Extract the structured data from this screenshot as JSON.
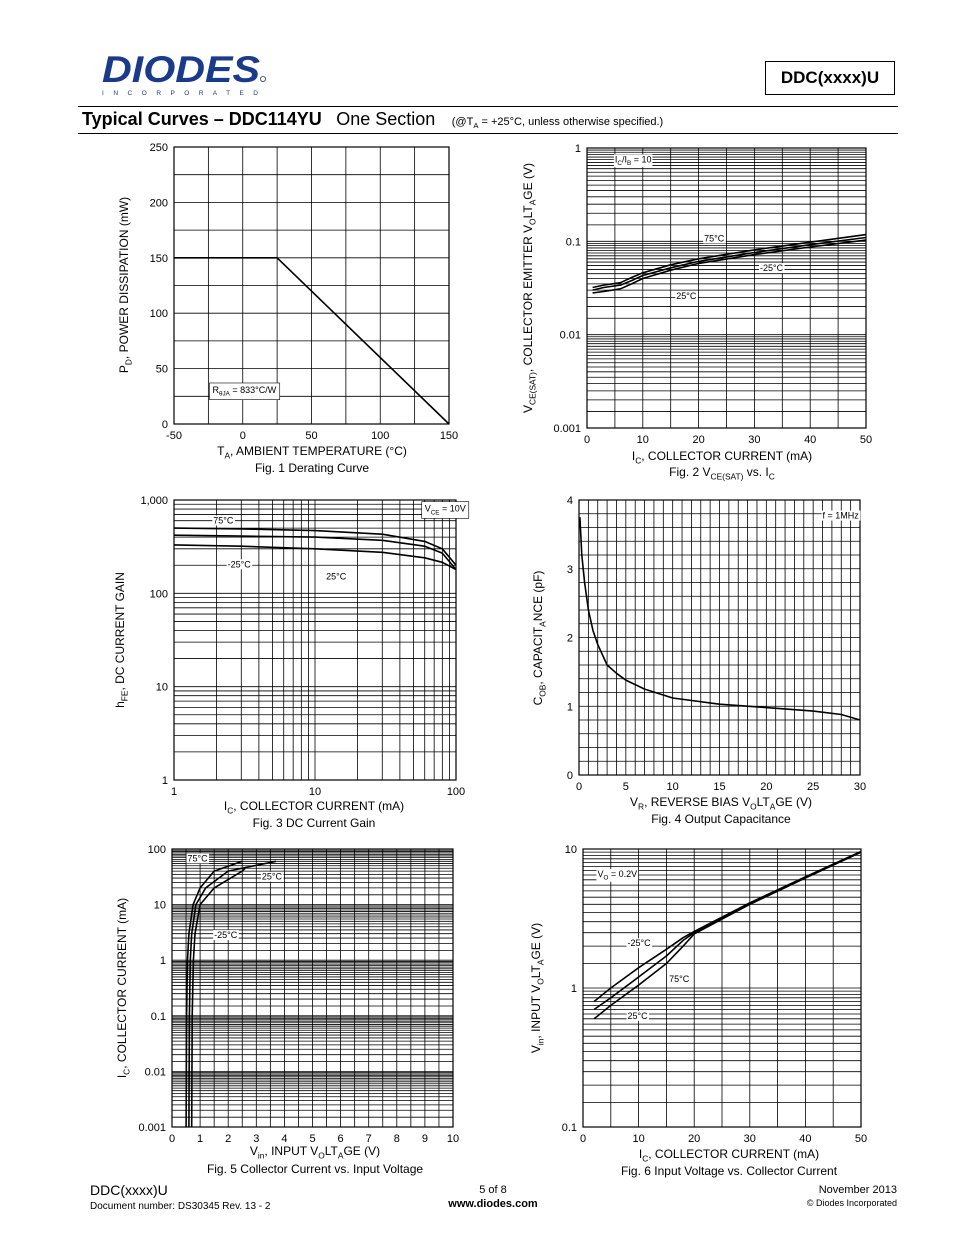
{
  "header": {
    "logo_text": "DIODES",
    "logo_sub": "I N C O R P O R A T E D",
    "part_box": "DDC(xxxx)U",
    "title_main": "Typical Curves – DDC114YU",
    "title_section": "One Section",
    "title_conditions": "(@TA = +25°C, unless otherwise specified.)"
  },
  "colors": {
    "ink": "#000000",
    "grid_curve": "#000000",
    "paper": "#ffffff"
  },
  "footer": {
    "part": "DDC(xxxx)U",
    "document": "Document number: DS30345 Rev. 13 - 2",
    "page": "5 of 8",
    "website": "www.diodes.com",
    "date": "November 2013",
    "copyright": "© Diodes Incorporated"
  },
  "chart_data": [
    {
      "id": "fig1",
      "type": "line",
      "xscale": "linear",
      "yscale": "linear",
      "caption": "Fig. 1  Derating Curve",
      "xlabel": "TA, AMBIENT TEMPERATURE (°C)",
      "ylabel": "PD, POWER DISSIPATION (mW)",
      "xlim": [
        -50,
        150
      ],
      "ylim": [
        0,
        250
      ],
      "x_tick_labels": [
        [
          "-50",
          -50
        ],
        [
          "0",
          0
        ],
        [
          "50",
          50
        ],
        [
          "100",
          100
        ],
        [
          "150",
          150
        ]
      ],
      "y_tick_labels": [
        [
          "0",
          0
        ],
        [
          "50",
          50
        ],
        [
          "100",
          100
        ],
        [
          "150",
          150
        ],
        [
          "200",
          200
        ],
        [
          "250",
          250
        ]
      ],
      "x_grid": [
        -50,
        -25,
        0,
        25,
        50,
        75,
        100,
        125,
        150
      ],
      "y_grid": [
        0,
        25,
        50,
        75,
        100,
        125,
        150,
        175,
        200,
        225,
        250
      ],
      "series": [
        {
          "x": [
            -50,
            25,
            150
          ],
          "y": [
            150,
            150,
            0
          ]
        }
      ],
      "annotations": [
        {
          "text": "RθJA = 833°C/W",
          "x": -22,
          "y": 28,
          "boxed": true
        }
      ]
    },
    {
      "id": "fig2",
      "type": "line",
      "xscale": "linear",
      "yscale": "log",
      "caption": "Fig. 2  VCE(SAT) vs. IC",
      "xlabel": "IC, COLLECTOR CURRENT (mA)",
      "ylabel": "VCE(SAT), COLLECTOR EMITTER VOLTAGE (V)",
      "xlim": [
        0,
        50
      ],
      "ylim": [
        0.001,
        1
      ],
      "x_tick_labels": [
        [
          "0",
          0
        ],
        [
          "10",
          10
        ],
        [
          "20",
          20
        ],
        [
          "30",
          30
        ],
        [
          "40",
          40
        ],
        [
          "50",
          50
        ]
      ],
      "y_tick_labels": [
        [
          "0.001",
          0.001
        ],
        [
          "0.01",
          0.01
        ],
        [
          "0.1",
          0.1
        ],
        [
          "1",
          1
        ]
      ],
      "x_grid": [
        0,
        5,
        10,
        15,
        20,
        25,
        30,
        35,
        40,
        45,
        50
      ],
      "y_grid": "log-minor",
      "series": [
        {
          "name": "75°C",
          "x": [
            1,
            3,
            6,
            8,
            10,
            15,
            20,
            30,
            40,
            50
          ],
          "y": [
            0.032,
            0.034,
            0.036,
            0.041,
            0.046,
            0.056,
            0.065,
            0.081,
            0.098,
            0.118
          ]
        },
        {
          "name": "25°C",
          "x": [
            1,
            3,
            6,
            8,
            10,
            15,
            20,
            30,
            40,
            50
          ],
          "y": [
            0.03,
            0.032,
            0.034,
            0.038,
            0.043,
            0.052,
            0.061,
            0.076,
            0.092,
            0.11
          ]
        },
        {
          "name": "-25°C",
          "x": [
            1,
            3,
            6,
            8,
            10,
            15,
            20,
            30,
            40,
            50
          ],
          "y": [
            0.028,
            0.029,
            0.031,
            0.035,
            0.04,
            0.049,
            0.058,
            0.072,
            0.087,
            0.103
          ]
        }
      ],
      "annotations": [
        {
          "text": "IC/IB = 10",
          "x": 5,
          "y": 0.7
        },
        {
          "text": "75°C",
          "x": 21,
          "y": 0.1
        },
        {
          "text": "25°C",
          "x": 16,
          "y": 0.024
        },
        {
          "text": "-25°C",
          "x": 31,
          "y": 0.048
        }
      ]
    },
    {
      "id": "fig3",
      "type": "line",
      "xscale": "log",
      "yscale": "log",
      "caption": "Fig. 3  DC Current Gain",
      "xlabel": "IC, COLLECTOR CURRENT (mA)",
      "ylabel": "hFE, DC CURRENT GAIN",
      "xlim": [
        1,
        100
      ],
      "ylim": [
        1,
        1000
      ],
      "x_tick_labels": [
        [
          "1",
          1
        ],
        [
          "10",
          10
        ],
        [
          "100",
          100
        ]
      ],
      "y_tick_labels": [
        [
          "1",
          1
        ],
        [
          "10",
          10
        ],
        [
          "100",
          100
        ],
        [
          "1,000",
          1000
        ]
      ],
      "x_grid": "log-minor",
      "y_grid": "log-minor",
      "series": [
        {
          "name": "75°C",
          "x": [
            1,
            3,
            10,
            30,
            60,
            80,
            100
          ],
          "y": [
            500,
            490,
            470,
            430,
            360,
            300,
            200
          ]
        },
        {
          "name": "25°C",
          "x": [
            1,
            3,
            10,
            30,
            60,
            80,
            100
          ],
          "y": [
            420,
            410,
            400,
            370,
            320,
            270,
            180
          ]
        },
        {
          "name": "-25°C",
          "x": [
            1,
            3,
            10,
            30,
            60,
            80,
            100
          ],
          "y": [
            330,
            320,
            300,
            275,
            240,
            215,
            180
          ]
        }
      ],
      "annotations": [
        {
          "text": "VCE = 10V",
          "x": 60,
          "y": 750,
          "boxed": true
        },
        {
          "text": "75°C",
          "x": 1.9,
          "y": 560
        },
        {
          "text": "-25°C",
          "x": 2.4,
          "y": 190
        },
        {
          "text": "25°C",
          "x": 12,
          "y": 140
        }
      ]
    },
    {
      "id": "fig4",
      "type": "line",
      "xscale": "linear",
      "yscale": "linear",
      "caption": "Fig. 4  Output Capacitance",
      "xlabel": "VR, REVERSE BIAS VOLTAGE (V)",
      "ylabel": "COB, CAPACITANCE (pF)",
      "xlim": [
        0,
        30
      ],
      "ylim": [
        0,
        4
      ],
      "x_tick_labels": [
        [
          "0",
          0
        ],
        [
          "5",
          5
        ],
        [
          "10",
          10
        ],
        [
          "15",
          15
        ],
        [
          "20",
          20
        ],
        [
          "25",
          25
        ],
        [
          "30",
          30
        ]
      ],
      "y_tick_labels": [
        [
          "0",
          0
        ],
        [
          "1",
          1
        ],
        [
          "2",
          2
        ],
        [
          "3",
          3
        ],
        [
          "4",
          4
        ]
      ],
      "x_grid": [
        0,
        1,
        2,
        3,
        4,
        5,
        6,
        7,
        8,
        9,
        10,
        11,
        12,
        13,
        14,
        15,
        16,
        17,
        18,
        19,
        20,
        21,
        22,
        23,
        24,
        25,
        26,
        27,
        28,
        29,
        30
      ],
      "y_grid": [
        0,
        0.2,
        0.4,
        0.6,
        0.8,
        1,
        1.2,
        1.4,
        1.6,
        1.8,
        2,
        2.2,
        2.4,
        2.6,
        2.8,
        3,
        3.2,
        3.4,
        3.6,
        3.8,
        4
      ],
      "series": [
        {
          "x": [
            0.1,
            0.3,
            0.6,
            1,
            1.5,
            2,
            3,
            4,
            5,
            7,
            10,
            15,
            20,
            25,
            28,
            30
          ],
          "y": [
            3.75,
            3.2,
            2.8,
            2.4,
            2.1,
            1.9,
            1.6,
            1.48,
            1.38,
            1.25,
            1.12,
            1.03,
            0.98,
            0.93,
            0.88,
            0.8
          ]
        }
      ],
      "annotations": [
        {
          "text": "f = 1MHz",
          "x": 26,
          "y": 3.73
        }
      ]
    },
    {
      "id": "fig5",
      "type": "line",
      "xscale": "linear",
      "yscale": "log",
      "caption": "Fig. 5  Collector Current vs. Input Voltage",
      "xlabel": "Vin, INPUT VOLTAGE (V)",
      "ylabel": "IC, COLLECTOR CURRENT (mA)",
      "xlim": [
        0,
        10
      ],
      "ylim": [
        0.001,
        100
      ],
      "x_tick_labels": [
        [
          "0",
          0
        ],
        [
          "1",
          1
        ],
        [
          "2",
          2
        ],
        [
          "3",
          3
        ],
        [
          "4",
          4
        ],
        [
          "5",
          5
        ],
        [
          "6",
          6
        ],
        [
          "7",
          7
        ],
        [
          "8",
          8
        ],
        [
          "9",
          9
        ],
        [
          "10",
          10
        ]
      ],
      "y_tick_labels": [
        [
          "0.001",
          0.001
        ],
        [
          "0.01",
          0.01
        ],
        [
          "0.1",
          0.1
        ],
        [
          "1",
          1
        ],
        [
          "10",
          10
        ],
        [
          "100",
          100
        ]
      ],
      "x_grid": [
        0,
        0.5,
        1,
        1.5,
        2,
        2.5,
        3,
        3.5,
        4,
        4.5,
        5,
        5.5,
        6,
        6.5,
        7,
        7.5,
        8,
        8.5,
        9,
        9.5,
        10
      ],
      "y_grid": "log-minor",
      "series": [
        {
          "name": "75°C",
          "x": [
            0.5,
            0.52,
            0.55,
            0.6,
            0.75,
            1.0,
            1.5,
            2.5
          ],
          "y": [
            0.001,
            0.1,
            1,
            3,
            10,
            20,
            40,
            60
          ]
        },
        {
          "name": "25°C",
          "x": [
            0.6,
            0.62,
            0.65,
            0.7,
            0.85,
            1.2,
            2.0,
            3.7
          ],
          "y": [
            0.001,
            0.1,
            1,
            3,
            10,
            20,
            40,
            60
          ]
        },
        {
          "name": "-25°C",
          "x": [
            0.7,
            0.72,
            0.76,
            0.82,
            1.0,
            1.5,
            2.5,
            2.6
          ],
          "y": [
            0.001,
            0.1,
            1,
            3,
            10,
            20,
            40,
            45
          ]
        }
      ],
      "annotations": [
        {
          "text": "75°C",
          "x": 0.55,
          "y": 60
        },
        {
          "text": "25°C",
          "x": 3.2,
          "y": 28
        },
        {
          "text": "-25°C",
          "x": 1.5,
          "y": 2.5
        }
      ]
    },
    {
      "id": "fig6",
      "type": "line",
      "xscale": "linear",
      "yscale": "log",
      "caption": "Fig. 6  Input Voltage vs. Collector Current",
      "xlabel": "IC, COLLECTOR CURRENT (mA)",
      "ylabel": "Vin, INPUT VOLTAGE (V)",
      "xlim": [
        0,
        50
      ],
      "ylim": [
        0.1,
        10
      ],
      "x_tick_labels": [
        [
          "0",
          0
        ],
        [
          "10",
          10
        ],
        [
          "20",
          20
        ],
        [
          "30",
          30
        ],
        [
          "40",
          40
        ],
        [
          "50",
          50
        ]
      ],
      "y_tick_labels": [
        [
          "0.1",
          0.1
        ],
        [
          "1",
          1
        ],
        [
          "10",
          10
        ]
      ],
      "x_grid": [
        0,
        5,
        10,
        15,
        20,
        25,
        30,
        35,
        40,
        45,
        50
      ],
      "y_grid": "log-minor",
      "series": [
        {
          "name": "-25°C",
          "x": [
            2,
            5,
            10,
            15,
            18,
            20,
            30,
            40,
            50
          ],
          "y": [
            0.8,
            1.0,
            1.4,
            1.9,
            2.3,
            2.55,
            4.1,
            6.3,
            9.6
          ]
        },
        {
          "name": "75°C",
          "x": [
            2,
            5,
            10,
            15,
            18,
            20,
            30,
            40,
            50
          ],
          "y": [
            0.7,
            0.85,
            1.2,
            1.7,
            2.2,
            2.5,
            4.0,
            6.2,
            9.5
          ]
        },
        {
          "name": "25°C",
          "x": [
            2,
            5,
            10,
            15,
            18,
            20,
            30,
            40,
            50
          ],
          "y": [
            0.6,
            0.75,
            1.05,
            1.5,
            2.0,
            2.45,
            4.0,
            6.2,
            9.5
          ]
        }
      ],
      "annotations": [
        {
          "text": "VO = 0.2V",
          "x": 2.6,
          "y": 6.3
        },
        {
          "text": "-25°C",
          "x": 8,
          "y": 2.0
        },
        {
          "text": "75°C",
          "x": 15.5,
          "y": 1.1
        },
        {
          "text": "25°C",
          "x": 8,
          "y": 0.6
        }
      ]
    }
  ]
}
